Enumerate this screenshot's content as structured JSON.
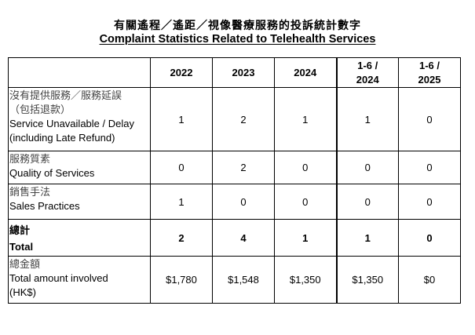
{
  "title_zh": "有關遙程／遙距／視像醫療服務的投訴統計數字",
  "title_en": "Complaint Statistics Related to Telehealth Services",
  "columns": [
    "2022",
    "2023",
    "2024",
    "1-6 /\n2024",
    "1-6 /\n2025"
  ],
  "columns_split": [
    [
      "2022"
    ],
    [
      "2023"
    ],
    [
      "2024"
    ],
    [
      "1-6 /",
      "2024"
    ],
    [
      "1-6 /",
      "2025"
    ]
  ],
  "rows": [
    {
      "zh": [
        "沒有提供服務／服務延誤",
        "（包括退款）"
      ],
      "en": [
        "Service Unavailable / Delay",
        "(including Late Refund)"
      ],
      "values": [
        "1",
        "2",
        "1",
        "1",
        "0"
      ]
    },
    {
      "zh": [
        "服務質素"
      ],
      "en": [
        "Quality of Services"
      ],
      "values": [
        "0",
        "2",
        "0",
        "0",
        "0"
      ]
    },
    {
      "zh": [
        "銷售手法"
      ],
      "en": [
        "Sales Practices"
      ],
      "values": [
        "1",
        "0",
        "0",
        "0",
        "0"
      ]
    },
    {
      "zh": [
        "總計"
      ],
      "en": [
        "Total"
      ],
      "values": [
        "2",
        "4",
        "1",
        "1",
        "0"
      ],
      "bold": true
    },
    {
      "zh": [
        "總金額"
      ],
      "en": [
        "Total amount involved",
        "(HK$)"
      ],
      "values": [
        "$1,780",
        "$1,548",
        "$1,350",
        "$1,350",
        "$0"
      ]
    }
  ]
}
